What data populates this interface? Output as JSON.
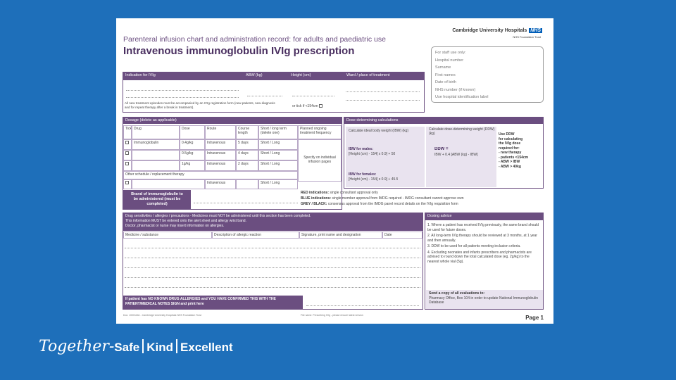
{
  "doc": {
    "title_line1": "Parenteral infusion chart and administration record: for adults and paediatric use",
    "title_line2": "Intravenous immunoglobulin IVIg prescription",
    "trust_name": "Cambridge University Hospitals",
    "nhs_badge": "NHS",
    "trust_sub": "NHS Foundation Trust",
    "page_label": "Page 1"
  },
  "staff_box": {
    "items": [
      "For staff use only:",
      "Hospital number",
      "Surname",
      "First names",
      "Date of birth",
      "NHS number (if known)",
      "Use hospital identification label"
    ]
  },
  "indication": {
    "headers": [
      "Indication for IVIg",
      "ABW (kg)",
      "Height (cm)",
      "Ward / place of treatment"
    ],
    "note": "All new treatment episodes must be accompanied by an IVIg registration form (new patients, new diagnosis and for repeat therapy after a break in treatment).",
    "height_check": "or tick if <154cm"
  },
  "dosage": {
    "header": "Dosage (delete as applicable)",
    "columns": [
      "Tick",
      "Drug",
      "Dose",
      "Route",
      "Course length",
      "Short / long term (delete one)",
      "Planned ongoing treatment frequency"
    ],
    "rows": [
      {
        "drug": "Immunoglobulin",
        "dose": "0.4g/kg",
        "route": "Intravenous",
        "course": "5 days",
        "term": "Short / Long"
      },
      {
        "drug": "",
        "dose": "0.5g/kg",
        "route": "Intravenous",
        "course": "4 days",
        "term": "Short / Long"
      },
      {
        "drug": "",
        "dose": "1g/kg",
        "route": "Intravenous",
        "course": "2 days",
        "term": "Short / Long"
      }
    ],
    "other_label": "Other schedule / replacement therapy",
    "other_row": {
      "route": "Intravenous",
      "term": "Short / Long"
    },
    "specify_note": "Specify on individual infusion pages",
    "brand_label": "Brand of immunoglobulin to be administered (must be completed)"
  },
  "calc": {
    "header": "Dose determining calculations",
    "ibw_calc": "Calculate ideal body weight (IBW) (kg)",
    "ddw_calc": "Calculate dose-determining weight (DDW) (kg)",
    "ibw_males": "IBW for males:",
    "ibw_males_formula": "[Height (cm) - 154] x 0.9] + 50",
    "ibw_females": "IBW for females:",
    "ibw_females_formula": "[Height (cm) - 154] x 0.9] + 45.5",
    "ddw_label": "DDW =",
    "ddw_formula": "IBW + 0.4 [ABW (kg) - IBW]",
    "use_ddw": [
      "Use DDW",
      "for calculating",
      "the IVIg dose",
      "required for:",
      "- new therapy",
      "- patients <154cm",
      "- ABW > IBW",
      "- ABW > 40kg"
    ]
  },
  "indications_key": [
    {
      "label": "RED indications:",
      "text": "single consultant approval only"
    },
    {
      "label": "BLUE indications:",
      "text": "single member approval from IMDG required - IMDG consultant cannot approve own"
    },
    {
      "label": "GREY / BLACK:",
      "text": "consensus approval from the IMDG panel record details on the IVIg requisition form"
    }
  ],
  "allergies": {
    "header": "Drug sensitivities / allergies / precautions - Medicines must NOT be administered until this section has been completed.",
    "header2": "This information MUST be entered onto the alert sheet and allergy wrist band.",
    "header3": "Doctor, pharmacist or nurse may insert information on allergies.",
    "columns": [
      "Medicine / substance",
      "Description of allergic reaction",
      "Signature, print name and designation",
      "Date"
    ],
    "nka": "If patient has NO KNOWN DRUG ALLERGIES and YOU HAVE CONFIRMED THIS WITH THE PATIENT/MEDICAL NOTES SIGN and print here"
  },
  "dosing_advice": {
    "header": "Dosing advice",
    "items": [
      "1. Where a patient has received IVIg previously, the same brand should be used for future doses.",
      "2. All long-term IVIg therapy should be reviewed at 3 months, at 1 year and then annually.",
      "3. DDW to be used for all patients meeting inclusion criteria.",
      "4. Excluding neonates and infants prescribers and pharmacists are advised to round down the total calculated dose (eg. 2g/kg) to the nearest whole vial (5g)."
    ],
    "send_title": "Send a copy of all evaluations to:",
    "send_text": "Pharmacy Office, Box 104 in order to update National Immunoglobulin Database"
  },
  "footer_notes": {
    "left": "Doc: 10001164 - Cambridge University Hospitals NHS Foundation Trust",
    "right": "File name: Prescribing IVIg - please ensure latest version"
  },
  "banner": {
    "script": "Together-",
    "safe": "Safe",
    "kind": "Kind",
    "excellent": "Excellent"
  }
}
